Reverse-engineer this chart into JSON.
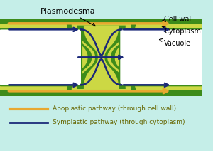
{
  "bg_color": "#c5eee8",
  "cell_wall_color": "#3d8b1a",
  "cytoplasm_color": "#ccd844",
  "vacuole_color": "#ffffff",
  "apoplastic_color": "#e8a830",
  "symplastic_color": "#1a2878",
  "legend_apo": "Apoplastic pathway (through cell wall)",
  "legend_sym": "Symplastic pathway (through cytoplasm)",
  "label_plasmodesma": "Plasmodesma",
  "label_cell_wall": "Cell wall",
  "label_cytoplasm": "Cytoplasm",
  "label_vacuole": "Vacuole",
  "fig_width": 3.0,
  "fig_height": 2.12
}
